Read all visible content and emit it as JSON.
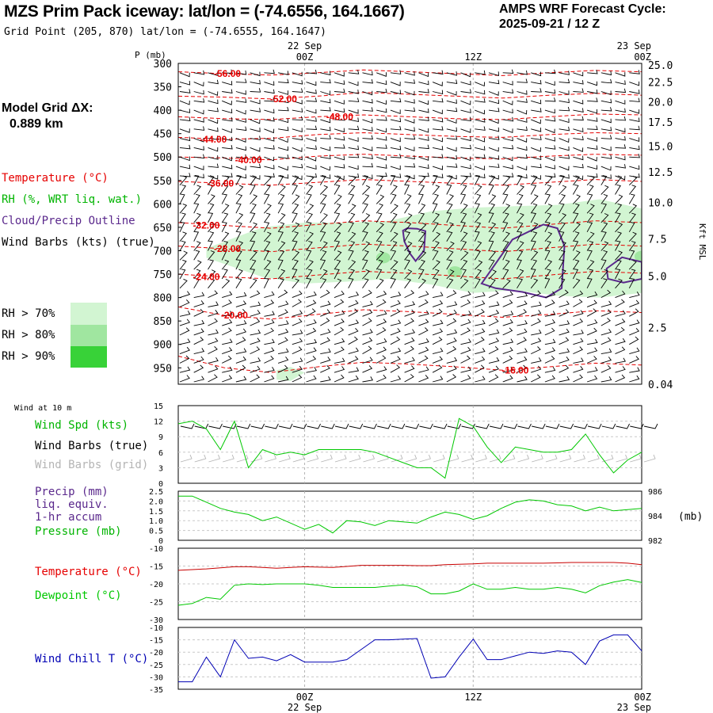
{
  "header": {
    "title": "MZS Prim Pack iceway:  lat/lon = (-74.6556, 164.1667)",
    "grid_point": "Grid Point (205, 870) lat/lon = (-74.6555, 164.1647)",
    "cycle_line1": "AMPS WRF Forecast Cycle:",
    "cycle_line2": "2025-09-21 / 12  Z"
  },
  "side": {
    "model_grid_label": "Model Grid ΔX:",
    "model_grid_value": "0.889 km",
    "legend_temperature": "Temperature (°C)",
    "legend_rh": "RH (%, WRT liq. wat.)",
    "legend_cloud": "Cloud/Precip Outline",
    "legend_wind": "Wind Barbs (kts) (true)",
    "rh70": "RH > 70%",
    "rh80": "RH > 80%",
    "rh90": "RH > 90%",
    "colors": {
      "rh70": "#d2f5d2",
      "rh80": "#a0e6a0",
      "rh90": "#38d238"
    }
  },
  "colors": {
    "temperature": "#e60000",
    "rh_text": "#00b400",
    "cloud": "#5a288c",
    "wind_grid": "#b4b4b4",
    "wind_chill": "#0000b4",
    "dewpoint": "#00c800"
  },
  "chart_data": [
    {
      "id": "sounding",
      "type": "area",
      "title": "Time-height cross section",
      "ylabel_left": "P (mb)",
      "ylabel_right": "Kft MSL",
      "time_labels": [
        {
          "t": 0.0,
          "top": "22 Sep",
          "bottom": "00Z"
        },
        {
          "t": 12.0,
          "top": "",
          "bottom": "12Z"
        },
        {
          "t": 24.0,
          "top": "23 Sep",
          "bottom": "00Z"
        }
      ],
      "x_range": [
        -9,
        24
      ],
      "pressure_range": [
        300,
        985
      ],
      "pressure_ticks": [
        300,
        350,
        400,
        450,
        500,
        550,
        600,
        650,
        700,
        750,
        800,
        850,
        900,
        950
      ],
      "height_ticks": [
        {
          "label": "25.0",
          "p": 303
        },
        {
          "label": "22.5",
          "p": 340
        },
        {
          "label": "20.0",
          "p": 382
        },
        {
          "label": "17.5",
          "p": 425
        },
        {
          "label": "15.0",
          "p": 477
        },
        {
          "label": "12.5",
          "p": 532
        },
        {
          "label": "10.0",
          "p": 597
        },
        {
          "label": "7.5",
          "p": 675
        },
        {
          "label": "5.0",
          "p": 754
        },
        {
          "label": "2.5",
          "p": 864
        },
        {
          "label": "0.04",
          "p": 985
        }
      ],
      "temperature_contours": [
        {
          "label": "-56.00",
          "p": [
            318,
            322,
            325,
            320,
            314,
            318,
            322,
            326,
            320,
            315,
            318
          ],
          "label_t": -5.5
        },
        {
          "label": "-52.00",
          "p": [
            370,
            372,
            376,
            370,
            362,
            366,
            370,
            374,
            368,
            364,
            368
          ],
          "label_t": -1.5
        },
        {
          "label": "-48.00",
          "p": [
            414,
            418,
            420,
            414,
            410,
            414,
            418,
            420,
            414,
            408,
            410
          ],
          "label_t": 2.5
        },
        {
          "label": "-44.00",
          "p": [
            458,
            462,
            460,
            452,
            448,
            452,
            456,
            458,
            452,
            448,
            450
          ],
          "label_t": -6.5
        },
        {
          "label": "-40.00",
          "p": [
            500,
            502,
            506,
            498,
            494,
            498,
            502,
            504,
            498,
            494,
            496
          ],
          "label_t": -4.0
        },
        {
          "label": "-36.00",
          "p": [
            552,
            556,
            560,
            554,
            548,
            552,
            556,
            560,
            554,
            548,
            552
          ],
          "label_t": -6.0
        },
        {
          "label": "-32.00",
          "p": [
            640,
            646,
            652,
            644,
            636,
            640,
            646,
            652,
            644,
            636,
            640
          ],
          "label_t": -7.0
        },
        {
          "label": "-28.00",
          "p": [
            690,
            696,
            702,
            694,
            686,
            690,
            696,
            702,
            694,
            686,
            690
          ],
          "label_t": -5.5
        },
        {
          "label": "-24.00",
          "p": [
            750,
            756,
            760,
            752,
            744,
            748,
            754,
            760,
            752,
            744,
            748
          ],
          "label_t": -7.0
        },
        {
          "label": "-20.00",
          "p": [
            820,
            838,
            846,
            836,
            826,
            830,
            836,
            842,
            836,
            828,
            832
          ],
          "label_t": -5.0
        },
        {
          "label": "-16.00",
          "p": [
            925,
            950,
            960,
            948,
            938,
            942,
            948,
            955,
            948,
            940,
            944
          ],
          "label_t": 15.0
        }
      ],
      "rh_regions": [
        {
          "level": "rh70",
          "t": [
            -7,
            -3,
            0,
            3,
            6,
            9,
            12,
            15,
            18,
            21,
            24,
            24,
            21,
            18,
            15,
            12,
            9,
            6,
            3,
            0,
            -3,
            -7
          ],
          "p": [
            695,
            650,
            640,
            640,
            636,
            616,
            608,
            605,
            602,
            590,
            610,
            790,
            800,
            796,
            784,
            790,
            772,
            760,
            766,
            770,
            756,
            715
          ]
        },
        {
          "level": "rh70",
          "t": [
            -2,
            -1,
            0,
            -1,
            -2
          ],
          "p": [
            955,
            948,
            960,
            978,
            975
          ]
        }
      ],
      "cloud_outlines": [
        {
          "t": [
            7,
            7.3,
            8,
            8.6,
            8.5,
            7.9,
            7.5,
            7.1,
            7
          ],
          "p": [
            657,
            652,
            653,
            658,
            700,
            722,
            706,
            680,
            657
          ]
        },
        {
          "t": [
            12.6,
            14.8,
            17,
            18,
            18.5,
            18.3,
            17.2,
            15.5,
            13.6,
            12.6
          ],
          "p": [
            770,
            676,
            644,
            652,
            690,
            780,
            800,
            788,
            780,
            770
          ]
        },
        {
          "t": [
            21.5,
            22.6,
            24,
            24,
            22.7,
            21.6,
            21.5
          ],
          "p": [
            738,
            714,
            724,
            760,
            768,
            760,
            738
          ]
        }
      ],
      "wind_rows_p": [
        320,
        340,
        360,
        380,
        400,
        420,
        440,
        460,
        480,
        500,
        520,
        540,
        560,
        580,
        600,
        620,
        640,
        660,
        680,
        700,
        720,
        740,
        760,
        780,
        800,
        820,
        840,
        860,
        880,
        900,
        920,
        940,
        960,
        980
      ],
      "wind_cols_t": [
        -9,
        -8,
        -7,
        -6,
        -5,
        -4,
        -3,
        -2,
        -1,
        0,
        1,
        2,
        3,
        4,
        5,
        6,
        7,
        8,
        9,
        10,
        11,
        12,
        13,
        14,
        15,
        16,
        17,
        18,
        19,
        20,
        21,
        22,
        23,
        24
      ]
    },
    {
      "id": "wind10m",
      "type": "line",
      "title": "Wind at 10 m",
      "legend": [
        "Wind Spd (kts)",
        "Wind Barbs (true)",
        "Wind Barbs (grid)"
      ],
      "ylim": [
        0,
        15
      ],
      "yticks": [
        0,
        3,
        6,
        9,
        12,
        15
      ],
      "x": [
        -9,
        -8,
        -7,
        -6,
        -5,
        -4,
        -3,
        -2,
        -1,
        0,
        1,
        2,
        3,
        4,
        5,
        6,
        7,
        8,
        9,
        10,
        11,
        12,
        13,
        14,
        15,
        16,
        17,
        18,
        19,
        20,
        21,
        22,
        23,
        24
      ],
      "series": [
        {
          "name": "Wind Spd (kts)",
          "values": [
            11.5,
            12,
            10.5,
            6.5,
            12,
            3,
            6.5,
            5.5,
            6,
            5.5,
            6.5,
            6.5,
            6.5,
            6.5,
            6,
            5,
            4,
            3,
            3,
            1,
            12.5,
            11,
            7,
            4,
            7,
            6.5,
            6,
            6,
            6.5,
            9.5,
            5.5,
            2,
            4.5,
            6
          ]
        }
      ]
    },
    {
      "id": "precip_pressure",
      "type": "line",
      "title": "Precip / Pressure",
      "legend": [
        "Precip (mm)",
        "liq. equiv.",
        "1-hr accum",
        "Pressure (mb)"
      ],
      "ylim_left": [
        0,
        2.5
      ],
      "yticks_left": [
        "0",
        "0.5",
        "1.0",
        "1.5",
        "2.0",
        "2.5"
      ],
      "ylim_right": [
        982,
        986
      ],
      "yticks_right": [
        "982",
        "984",
        "986"
      ],
      "right_unit": "(mb)",
      "x": [
        -9,
        -8,
        -7,
        -6,
        -5,
        -4,
        -3,
        -2,
        -1,
        0,
        1,
        2,
        3,
        4,
        5,
        6,
        7,
        8,
        9,
        10,
        11,
        12,
        13,
        14,
        15,
        16,
        17,
        18,
        19,
        20,
        21,
        22,
        23,
        24
      ],
      "series": [
        {
          "name": "Pressure (mb)",
          "values": [
            985.6,
            985.6,
            985.1,
            984.6,
            984.3,
            984.1,
            983.6,
            983.9,
            983.4,
            982.9,
            983.3,
            982.6,
            983.6,
            983.5,
            983.2,
            983.6,
            983.5,
            983.4,
            983.9,
            984.3,
            984.1,
            983.7,
            984.0,
            984.6,
            985.1,
            985.3,
            985.2,
            984.9,
            984.8,
            984.4,
            984.7,
            984.4,
            984.5,
            984.6
          ]
        }
      ]
    },
    {
      "id": "temperature_dewpoint",
      "type": "line",
      "title": "Temperature / Dewpoint",
      "legend": [
        "Temperature (°C)",
        "Dewpoint (°C)"
      ],
      "ylim": [
        -30,
        -10
      ],
      "yticks": [
        -30,
        -25,
        -20,
        -15,
        -10
      ],
      "x": [
        -9,
        -8,
        -7,
        -6,
        -5,
        -4,
        -3,
        -2,
        -1,
        0,
        1,
        2,
        3,
        4,
        5,
        6,
        7,
        8,
        9,
        10,
        11,
        12,
        13,
        14,
        15,
        16,
        17,
        18,
        19,
        20,
        21,
        22,
        23,
        24
      ],
      "series": [
        {
          "name": "Temperature (°C)",
          "values": [
            -16.2,
            -16.0,
            -15.8,
            -15.5,
            -15.2,
            -15.2,
            -15.4,
            -15.6,
            -15.4,
            -15.2,
            -15.3,
            -15.4,
            -15.1,
            -14.8,
            -14.8,
            -14.8,
            -14.8,
            -14.9,
            -14.9,
            -14.6,
            -14.5,
            -14.4,
            -14.2,
            -14.2,
            -14.2,
            -14.2,
            -14.2,
            -14.1,
            -14.0,
            -14.0,
            -14.0,
            -14.0,
            -14.2,
            -14.6
          ]
        },
        {
          "name": "Dewpoint (°C)",
          "values": [
            -26.0,
            -25.5,
            -23.8,
            -24.3,
            -20.4,
            -20.0,
            -20.2,
            -20.0,
            -20.0,
            -20.0,
            -20.4,
            -21.0,
            -21.0,
            -21.0,
            -21.0,
            -20.6,
            -20.3,
            -20.8,
            -22.8,
            -22.8,
            -22.0,
            -20.0,
            -21.5,
            -21.5,
            -21.0,
            -21.5,
            -21.5,
            -21.0,
            -21.5,
            -22.5,
            -20.5,
            -19.5,
            -18.8,
            -19.6
          ]
        }
      ]
    },
    {
      "id": "wind_chill",
      "type": "line",
      "title": "Wind Chill T",
      "legend": [
        "Wind Chill T (°C)"
      ],
      "ylim": [
        -35,
        -10
      ],
      "yticks": [
        -35,
        -30,
        -25,
        -20,
        -15,
        -10
      ],
      "x": [
        -9,
        -8,
        -7,
        -6,
        -5,
        -4,
        -3,
        -2,
        -1,
        0,
        1,
        2,
        3,
        4,
        5,
        6,
        7,
        8,
        9,
        10,
        11,
        12,
        13,
        14,
        15,
        16,
        17,
        18,
        19,
        20,
        21,
        22,
        23,
        24
      ],
      "series": [
        {
          "name": "Wind Chill T (°C)",
          "values": [
            -32,
            -32,
            -22,
            -30,
            -15,
            -22.5,
            -22,
            -23.5,
            -21,
            -24,
            -24,
            -24,
            -23,
            -19,
            -15,
            -15,
            -14.7,
            -14.5,
            -30.5,
            -30,
            -22,
            -14.7,
            -23,
            -23,
            -21.5,
            -20,
            -20.5,
            -19.5,
            -20,
            -25,
            -15.5,
            -13,
            -13,
            -19.5
          ]
        }
      ],
      "time_labels": [
        {
          "t": 0.0,
          "top": "00Z",
          "bottom": "22 Sep"
        },
        {
          "t": 12.0,
          "top": "12Z",
          "bottom": ""
        },
        {
          "t": 24.0,
          "top": "00Z",
          "bottom": "23 Sep"
        }
      ]
    }
  ]
}
